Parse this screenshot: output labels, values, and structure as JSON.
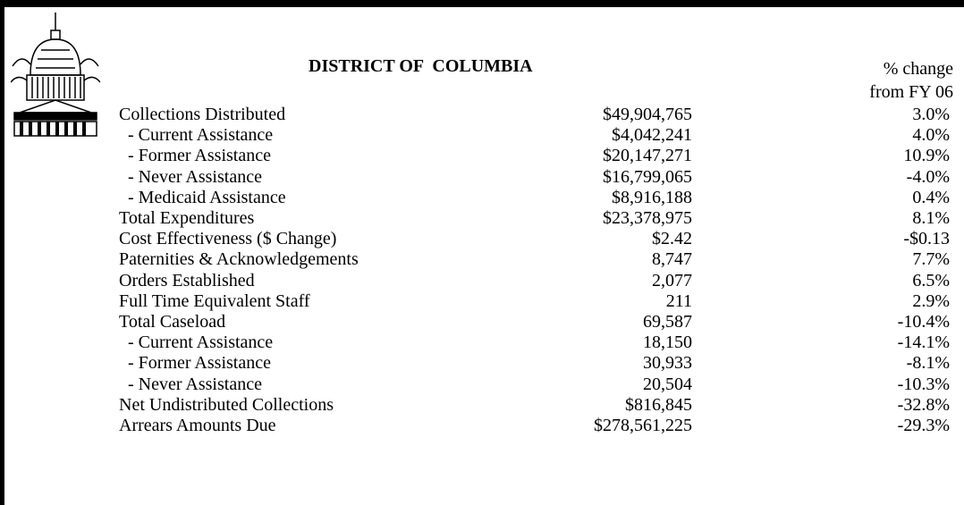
{
  "header": {
    "title": "DISTRICT OF  COLUMBIA",
    "change_label": [
      "% change",
      "from FY 06"
    ]
  },
  "table": {
    "rows": [
      [
        "Collections Distributed",
        "$49,904,765",
        "3.0%"
      ],
      [
        "  - Current Assistance",
        "$4,042,241",
        "4.0%"
      ],
      [
        "  - Former Assistance",
        "$20,147,271",
        "10.9%"
      ],
      [
        "  - Never Assistance",
        "$16,799,065",
        "-4.0%"
      ],
      [
        "  - Medicaid Assistance",
        "$8,916,188",
        "0.4%"
      ],
      [
        "Total Expenditures",
        "$23,378,975",
        "8.1%"
      ],
      [
        "Cost Effectiveness ($ Change)",
        "$2.42",
        "-$0.13"
      ],
      [
        "Paternities & Acknowledgements",
        "8,747",
        "7.7%"
      ],
      [
        "Orders Established",
        "2,077",
        "6.5%"
      ],
      [
        "Full Time Equivalent Staff",
        "211",
        "2.9%"
      ],
      [
        "Total Caseload",
        "69,587",
        "-10.4%"
      ],
      [
        "  - Current Assistance",
        "18,150",
        "-14.1%"
      ],
      [
        "  - Former Assistance",
        "30,933",
        "-8.1%"
      ],
      [
        "  - Never Assistance",
        "20,504",
        "-10.3%"
      ],
      [
        "Net Undistributed Collections",
        "$816,845",
        "-32.8%"
      ],
      [
        "Arrears Amounts Due",
        "$278,561,225",
        "-29.3%"
      ]
    ]
  }
}
